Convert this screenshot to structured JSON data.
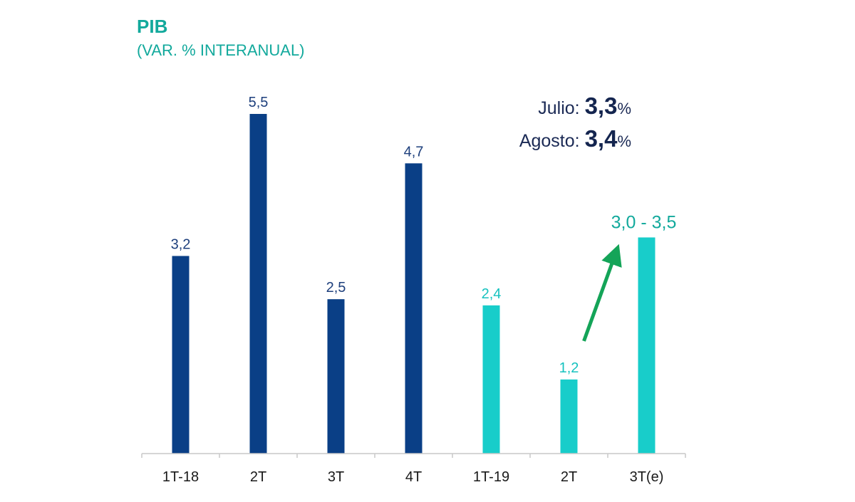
{
  "colors": {
    "bar_2018": "#0a3f86",
    "bar_2019": "#18cdca",
    "label_2018": "#1d3f7c",
    "label_2019": "#16c2bf",
    "estimate_label": "#12a99c",
    "arrow": "#14a458",
    "axis": "#c8c8c8"
  },
  "header": {
    "title": "PIB",
    "subtitle": "(VAR. % INTERANUAL)"
  },
  "notes": [
    {
      "label": "Julio:",
      "value": "3,3",
      "unit": "%"
    },
    {
      "label": "Agosto:",
      "value": "3,4",
      "unit": "%"
    }
  ],
  "chart_data": {
    "type": "bar",
    "title": "PIB",
    "subtitle": "(VAR. % INTERANUAL)",
    "categories": [
      "1T-18",
      "2T",
      "3T",
      "4T",
      "1T-19",
      "2T",
      "3T(e)"
    ],
    "values": [
      3.2,
      5.5,
      2.5,
      4.7,
      2.4,
      1.2,
      3.5
    ],
    "value_labels": [
      "3,2",
      "5,5",
      "2,5",
      "4,7",
      "2,4",
      "1,2",
      "3,0 - 3,5"
    ],
    "bar_group": [
      "2018",
      "2018",
      "2018",
      "2018",
      "2019",
      "2019",
      "2019"
    ],
    "estimate_range": {
      "category": "3T(e)",
      "low": 3.0,
      "high": 3.5
    },
    "ylim": [
      0,
      5.5
    ],
    "grid": false,
    "xlabel": "",
    "ylabel": "",
    "annotations": [
      {
        "type": "arrow",
        "from": "2T",
        "to": "3T(e)"
      }
    ]
  }
}
